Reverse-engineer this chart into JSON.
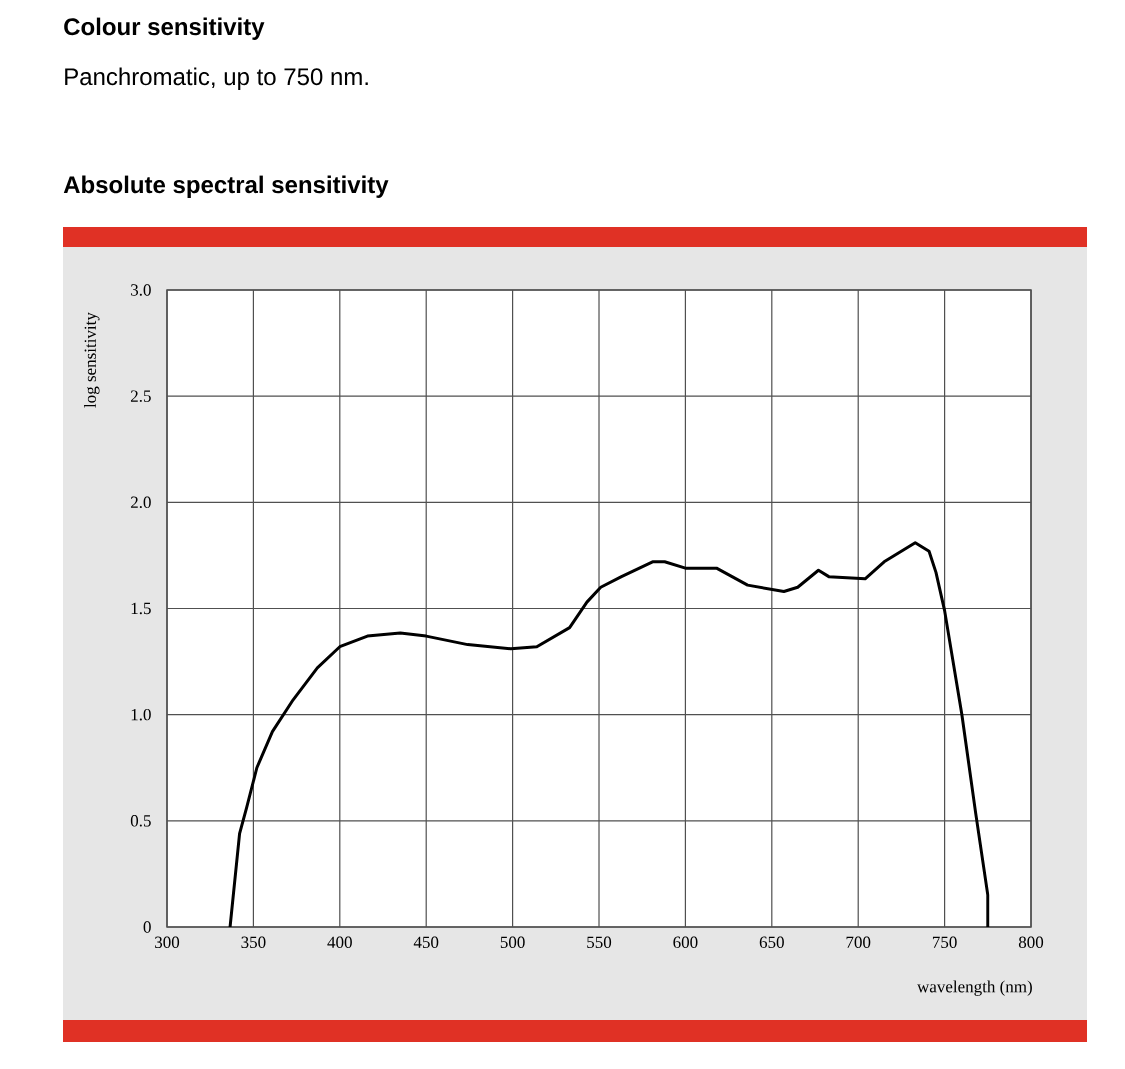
{
  "chart_data": {
    "type": "line",
    "title": "Absolute spectral sensitivity",
    "annotations": [
      "Colour sensitivity",
      "Panchromatic, up to 750 nm."
    ],
    "xlabel": "wavelength (nm)",
    "ylabel": "log sensitivity",
    "series": [
      {
        "color": "#000000",
        "x": [
          336.5,
          342,
          346,
          352,
          361,
          373,
          387,
          400,
          416,
          435,
          450,
          474,
          499,
          514,
          533,
          543,
          551,
          563,
          581,
          588,
          600,
          618,
          636,
          657,
          665,
          677,
          683,
          704,
          715,
          733,
          741,
          745,
          750,
          760,
          768,
          775,
          775
        ],
        "values": [
          0,
          0.44,
          0.56,
          0.75,
          0.92,
          1.07,
          1.22,
          1.32,
          1.37,
          1.385,
          1.37,
          1.33,
          1.31,
          1.32,
          1.41,
          1.53,
          1.6,
          1.65,
          1.72,
          1.72,
          1.69,
          1.69,
          1.61,
          1.58,
          1.6,
          1.68,
          1.65,
          1.64,
          1.72,
          1.81,
          1.77,
          1.67,
          1.49,
          1.0,
          0.535,
          0.15,
          0
        ]
      }
    ],
    "xlim": [
      300,
      800
    ],
    "ylim": [
      0,
      3
    ],
    "xticks": [
      300,
      350,
      400,
      450,
      500,
      550,
      600,
      650,
      700,
      750,
      800
    ],
    "yticks": [
      0,
      0.5,
      {
        "value": 1,
        "label": "1.0"
      },
      1.5,
      {
        "value": 2,
        "label": "2.0"
      },
      2.5,
      {
        "value": 3,
        "label": "3.0"
      }
    ],
    "grid": true,
    "marker": "none",
    "line_style": "solid"
  }
}
